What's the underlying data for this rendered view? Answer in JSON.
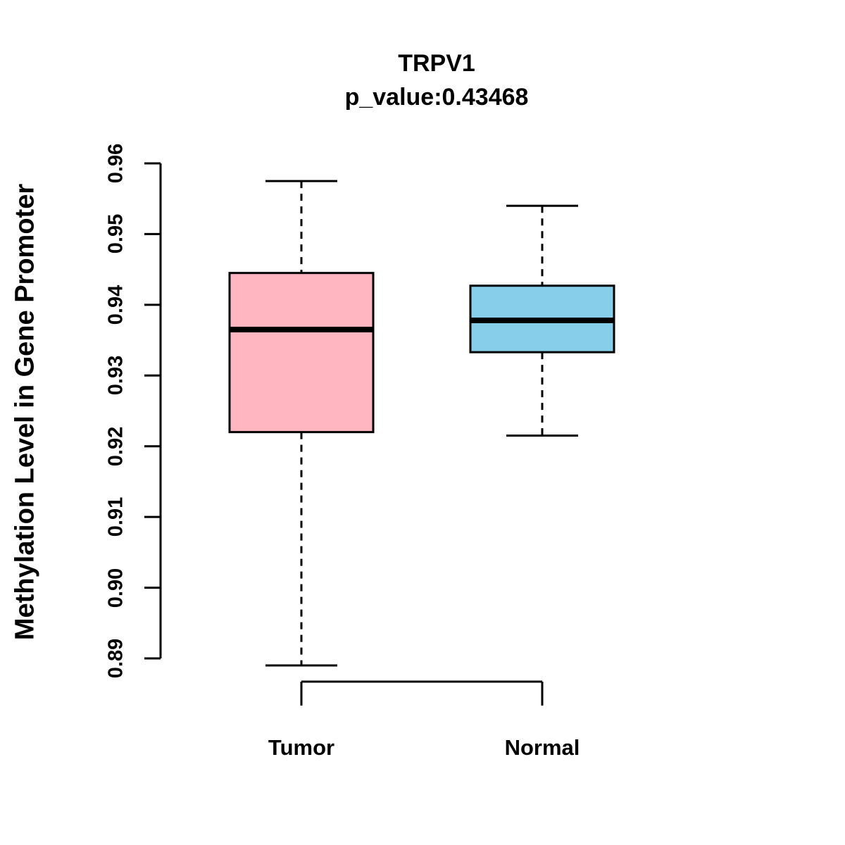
{
  "title": {
    "line1": "TRPV1",
    "line2": "p_value:0.43468"
  },
  "chart_data": {
    "type": "boxplot",
    "title": "TRPV1",
    "subtitle": "p_value:0.43468",
    "ylabel": "Methylation Level in Gene Promoter",
    "xlabel": "",
    "categories": [
      "Tumor",
      "Normal"
    ],
    "ylim": [
      0.89,
      0.96
    ],
    "yticks": [
      0.89,
      0.9,
      0.91,
      0.92,
      0.93,
      0.94,
      0.95,
      0.96
    ],
    "ytick_labels": [
      "0.89",
      "0.90",
      "0.91",
      "0.92",
      "0.93",
      "0.94",
      "0.95",
      "0.96"
    ],
    "grid": false,
    "legend": "none",
    "series": [
      {
        "name": "Tumor",
        "color": "#FFB6C1",
        "whisker_low": 0.889,
        "q1": 0.922,
        "median": 0.9365,
        "q3": 0.9445,
        "whisker_high": 0.9575
      },
      {
        "name": "Normal",
        "color": "#87CEEB",
        "whisker_low": 0.9215,
        "q1": 0.9333,
        "median": 0.9378,
        "q3": 0.9427,
        "whisker_high": 0.954
      }
    ]
  }
}
